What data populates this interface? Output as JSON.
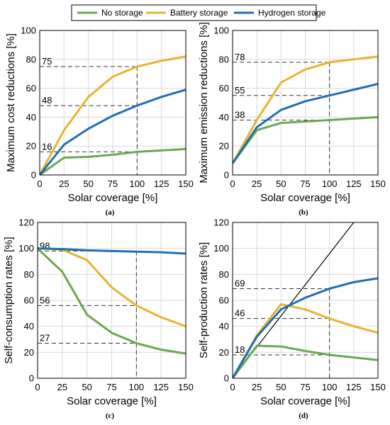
{
  "legend": {
    "items": [
      {
        "label": "No storage",
        "color": "#6aa84f"
      },
      {
        "label": "Battery storage",
        "color": "#e6b42e"
      },
      {
        "label": "Hydrogen storage",
        "color": "#1f6fb4"
      }
    ]
  },
  "chart_data": [
    {
      "type": "line",
      "panel": "(a)",
      "xlabel": "Solar coverage [%]",
      "ylabel": "Maximum cost reductions [%]",
      "xlim": [
        0,
        150
      ],
      "ylim": [
        0,
        100
      ],
      "xticks": [
        0,
        25,
        50,
        75,
        100,
        125,
        150
      ],
      "yticks": [
        0,
        20,
        40,
        60,
        80,
        100
      ],
      "x": [
        0,
        25,
        50,
        75,
        100,
        125,
        150
      ],
      "series": [
        {
          "name": "No storage",
          "values": [
            0,
            12,
            12.5,
            14,
            16,
            17,
            18
          ]
        },
        {
          "name": "Battery storage",
          "values": [
            0,
            31,
            54,
            68,
            75,
            79,
            82
          ]
        },
        {
          "name": "Hydrogen storage",
          "values": [
            0,
            21,
            32,
            41,
            48,
            54,
            59
          ]
        }
      ],
      "annotations": [
        "75",
        "48",
        "16"
      ],
      "annotation_values": [
        75,
        48,
        16
      ],
      "vline_x": 100,
      "grid": true
    },
    {
      "type": "line",
      "panel": "(b)",
      "xlabel": "Solar coverage [%]",
      "ylabel": "Maximum emission reductions [%]",
      "xlim": [
        0,
        150
      ],
      "ylim": [
        0,
        100
      ],
      "xticks": [
        0,
        25,
        50,
        75,
        100,
        125,
        150
      ],
      "yticks": [
        0,
        20,
        40,
        60,
        80,
        100
      ],
      "x": [
        0,
        25,
        50,
        75,
        100,
        125,
        150
      ],
      "series": [
        {
          "name": "No storage",
          "values": [
            8,
            31,
            36,
            37,
            38,
            39,
            40
          ]
        },
        {
          "name": "Battery storage",
          "values": [
            8,
            38,
            64,
            73,
            78,
            80,
            82
          ]
        },
        {
          "name": "Hydrogen storage",
          "values": [
            8,
            33,
            45,
            51,
            55,
            59,
            63
          ]
        }
      ],
      "annotations": [
        "78",
        "55",
        "38"
      ],
      "annotation_values": [
        78,
        55,
        38
      ],
      "vline_x": 100,
      "grid": true
    },
    {
      "type": "line",
      "panel": "(c)",
      "xlabel": "Solar coverage [%]",
      "ylabel": "Self-consumption rates [%]",
      "xlim": [
        0,
        150
      ],
      "ylim": [
        0,
        120
      ],
      "xticks": [
        0,
        25,
        50,
        75,
        100,
        125,
        150
      ],
      "yticks": [
        0,
        20,
        40,
        60,
        80,
        100,
        120
      ],
      "x": [
        0,
        25,
        50,
        75,
        100,
        125,
        150
      ],
      "series": [
        {
          "name": "No storage",
          "values": [
            100,
            82,
            49,
            35,
            27,
            22,
            19
          ]
        },
        {
          "name": "Battery storage",
          "values": [
            100,
            99,
            91,
            70,
            56,
            47,
            40
          ]
        },
        {
          "name": "Hydrogen storage",
          "values": [
            100,
            99.5,
            98.5,
            98,
            97.5,
            97,
            96
          ]
        }
      ],
      "annotations": [
        "98",
        "56",
        "27"
      ],
      "annotation_values": [
        98,
        56,
        27
      ],
      "vline_x": 100,
      "grid": true
    },
    {
      "type": "line",
      "panel": "(d)",
      "xlabel": "Solar coverage [%]",
      "ylabel": "Self-production rates [%]",
      "xlim": [
        0,
        150
      ],
      "ylim": [
        0,
        120
      ],
      "xticks": [
        0,
        25,
        50,
        75,
        100,
        125,
        150
      ],
      "yticks": [
        0,
        20,
        40,
        60,
        80,
        100,
        120
      ],
      "x": [
        0,
        25,
        50,
        75,
        100,
        125,
        150
      ],
      "series": [
        {
          "name": "No storage",
          "values": [
            0,
            25,
            24.5,
            21,
            18,
            16,
            14
          ]
        },
        {
          "name": "Battery storage",
          "values": [
            0,
            33,
            57,
            53,
            46,
            40,
            35
          ]
        },
        {
          "name": "Hydrogen storage",
          "values": [
            0,
            32,
            53,
            62,
            69,
            74,
            77
          ]
        }
      ],
      "reference_line": {
        "x": [
          0,
          125
        ],
        "y": [
          0,
          120
        ],
        "color": "#000000"
      },
      "annotations": [
        "69",
        "46",
        "18"
      ],
      "annotation_values": [
        69,
        46,
        18
      ],
      "vline_x": 100,
      "grid": true
    }
  ]
}
